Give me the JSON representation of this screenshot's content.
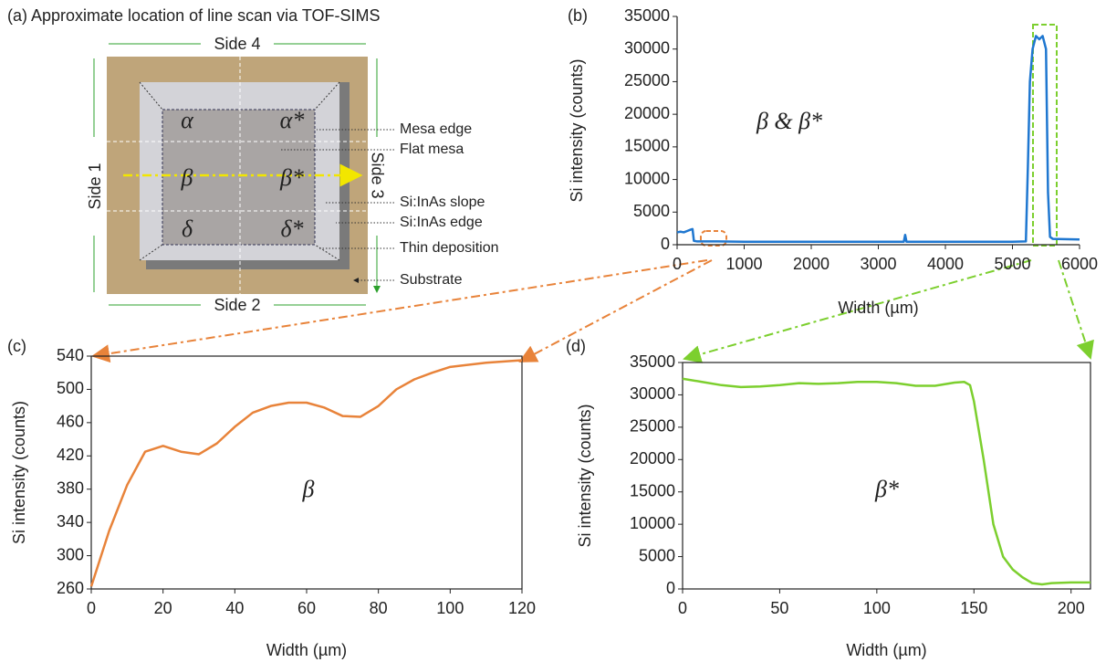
{
  "diagram": {
    "title": "(a) Approximate location of line scan via TOF-SIMS",
    "sides": [
      "Side 1",
      "Side 2",
      "Side 3",
      "Side 4"
    ],
    "regions": [
      "α",
      "α*",
      "β",
      "β*",
      "δ",
      "δ*"
    ],
    "callouts": [
      "Mesa edge",
      "Flat mesa",
      "Si:InAs slope",
      "Si:InAs edge",
      "Thin deposition",
      "Substrate"
    ]
  },
  "chart_data": [
    {
      "type": "line",
      "panel_label": "(b)",
      "annotation": "β & β*",
      "xlabel": "Width (µm)",
      "ylabel": "Si intensity (counts)",
      "color": "#1f77d0",
      "x": [
        0,
        50,
        100,
        150,
        200,
        230,
        250,
        300,
        600,
        1000,
        2000,
        3000,
        3380,
        3400,
        3420,
        4000,
        5000,
        5200,
        5230,
        5260,
        5300,
        5350,
        5400,
        5450,
        5500,
        5530,
        5560,
        5600,
        6000
      ],
      "values": [
        1900,
        2000,
        1900,
        2100,
        2300,
        2400,
        600,
        500,
        500,
        450,
        450,
        450,
        450,
        1500,
        450,
        450,
        450,
        500,
        12000,
        25000,
        30000,
        32000,
        31500,
        32000,
        30000,
        8000,
        1200,
        900,
        800
      ],
      "xlim": [
        0,
        6000
      ],
      "xticks": [
        0,
        1000,
        2000,
        3000,
        4000,
        5000,
        6000
      ],
      "ylim": [
        0,
        35000
      ],
      "yticks": [
        0,
        5000,
        10000,
        15000,
        20000,
        25000,
        30000,
        35000
      ]
    },
    {
      "type": "line",
      "panel_label": "(c)",
      "annotation": "β",
      "xlabel": "Width (µm)",
      "ylabel": "Si intensity (counts)",
      "color": "#e8833a",
      "x": [
        0,
        5,
        10,
        15,
        20,
        25,
        30,
        35,
        40,
        45,
        50,
        55,
        60,
        65,
        70,
        75,
        80,
        85,
        90,
        95,
        100,
        110,
        120
      ],
      "values": [
        263,
        330,
        385,
        425,
        432,
        425,
        422,
        435,
        455,
        472,
        480,
        484,
        484,
        478,
        468,
        467,
        480,
        500,
        512,
        520,
        527,
        532,
        535
      ],
      "xlim": [
        0,
        120
      ],
      "xticks": [
        0,
        20,
        40,
        60,
        80,
        100,
        120
      ],
      "ylim": [
        260,
        540
      ],
      "yticks": [
        260,
        300,
        340,
        380,
        420,
        460,
        500,
        540
      ]
    },
    {
      "type": "line",
      "panel_label": "(d)",
      "annotation": "β*",
      "xlabel": "Width (µm)",
      "ylabel": "Si intensity (counts)",
      "color": "#7ccf2e",
      "x": [
        0,
        10,
        20,
        30,
        40,
        50,
        60,
        70,
        80,
        90,
        100,
        110,
        120,
        130,
        140,
        145,
        148,
        150,
        155,
        160,
        165,
        170,
        175,
        180,
        185,
        190,
        200,
        210
      ],
      "values": [
        32500,
        32000,
        31500,
        31200,
        31300,
        31500,
        31800,
        31700,
        31800,
        32000,
        32000,
        31800,
        31400,
        31400,
        31900,
        32000,
        31500,
        29000,
        20000,
        10000,
        5000,
        3000,
        1800,
        900,
        700,
        900,
        1000,
        1000
      ],
      "xlim": [
        0,
        210
      ],
      "xticks": [
        0,
        50,
        100,
        150,
        200
      ],
      "ylim": [
        0,
        35000
      ],
      "yticks": [
        0,
        5000,
        10000,
        15000,
        20000,
        25000,
        30000,
        35000
      ]
    }
  ]
}
